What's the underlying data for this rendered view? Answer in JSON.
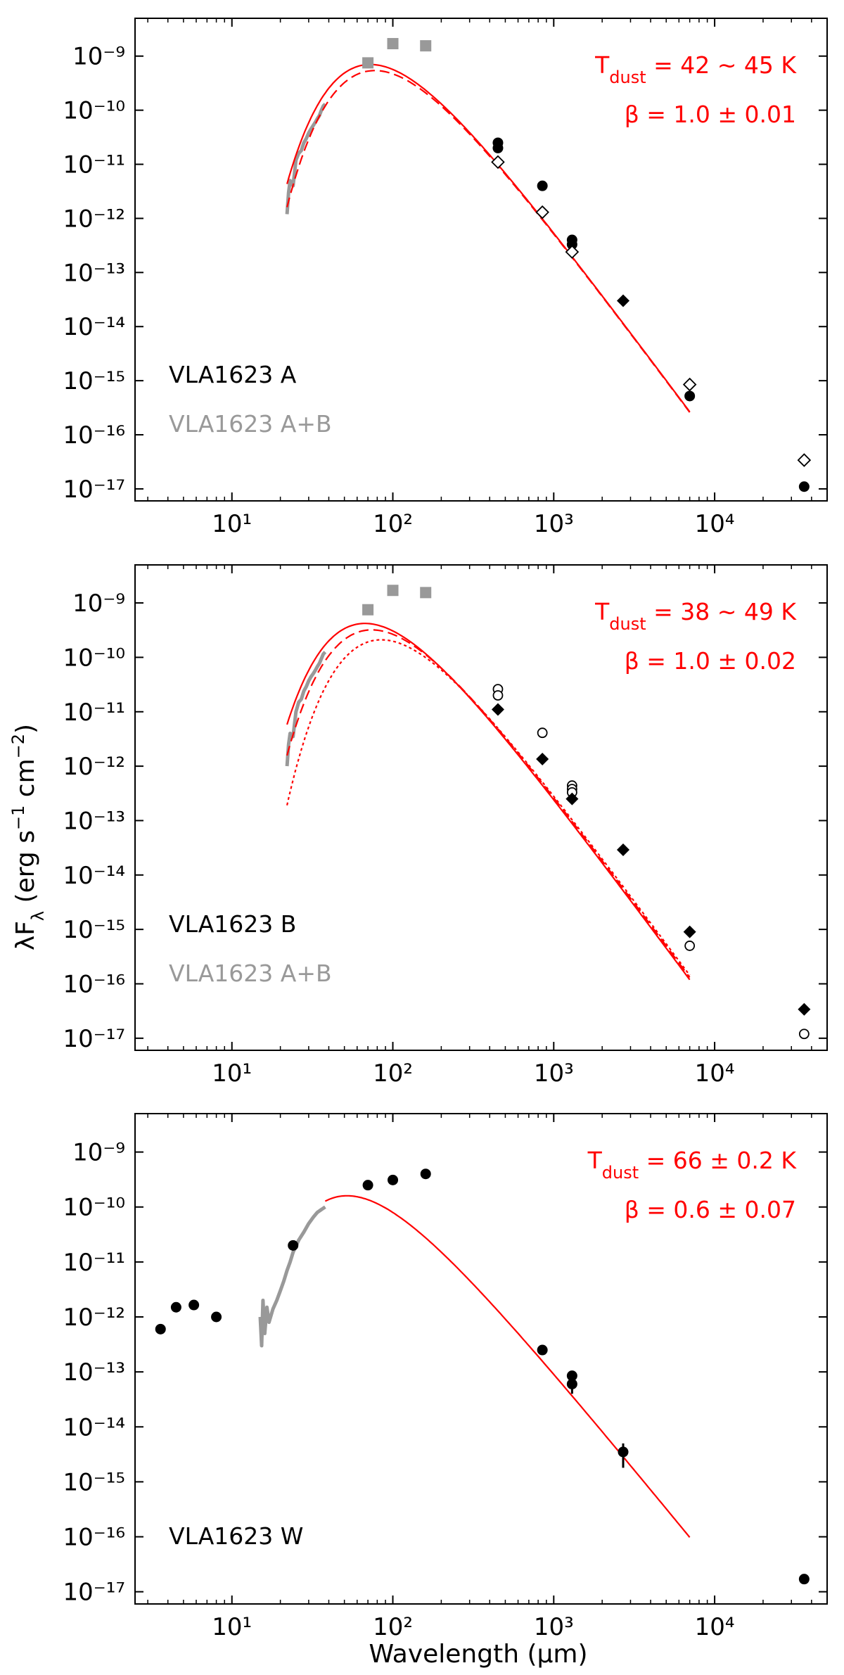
{
  "figure": {
    "xlabel": "Wavelength (μm)",
    "ylabel": "λF_λ (erg s⁻¹ cm⁻²)"
  },
  "colors": {
    "fit": "#ff0000",
    "gray": "#999999",
    "black": "#000000"
  },
  "chart_data": [
    {
      "type": "scatter",
      "xscale": "log",
      "yscale": "log",
      "xlim": [
        2.5,
        50000
      ],
      "ylim": [
        6e-18,
        5e-09
      ],
      "xticks": [
        {
          "v": 10,
          "label": "10¹"
        },
        {
          "v": 100,
          "label": "10²"
        },
        {
          "v": 1000,
          "label": "10³"
        },
        {
          "v": 10000,
          "label": "10⁴"
        }
      ],
      "yticks": [
        {
          "v": 1e-09,
          "label": "10⁻⁹"
        },
        {
          "v": 1e-10,
          "label": "10⁻¹⁰"
        },
        {
          "v": 1e-11,
          "label": "10⁻¹¹"
        },
        {
          "v": 1e-12,
          "label": "10⁻¹²"
        },
        {
          "v": 1e-13,
          "label": "10⁻¹³"
        },
        {
          "v": 1e-14,
          "label": "10⁻¹⁴"
        },
        {
          "v": 1e-15,
          "label": "10⁻¹⁵"
        },
        {
          "v": 1e-16,
          "label": "10⁻¹⁶"
        },
        {
          "v": 1e-17,
          "label": "10⁻¹⁷"
        }
      ],
      "annotations": {
        "tdust": "42 ∼ 45 K",
        "beta": "β = 1.0 ± 0.01"
      },
      "legend": {
        "source": "VLA1623 A",
        "combined": "VLA1623 A+B"
      },
      "gray_spectrum": [
        [
          22,
          1.2e-12
        ],
        [
          22.5,
          3e-12
        ],
        [
          23,
          5e-12
        ],
        [
          24,
          4e-12
        ],
        [
          25,
          1.2e-11
        ],
        [
          26,
          1.6e-11
        ],
        [
          27,
          1.8e-11
        ],
        [
          28,
          2.5e-11
        ],
        [
          29,
          3e-11
        ],
        [
          30,
          3.8e-11
        ],
        [
          31,
          4.5e-11
        ],
        [
          32,
          5.2e-11
        ],
        [
          33,
          6e-11
        ],
        [
          34,
          7e-11
        ],
        [
          35,
          8e-11
        ],
        [
          36,
          1e-10
        ],
        [
          37,
          1.2e-10
        ],
        [
          38,
          1.3e-10
        ]
      ],
      "series": [
        {
          "name": "far-IR (A+B)",
          "marker": "square",
          "color": "#999999",
          "x": [
            70,
            100,
            160
          ],
          "y": [
            7.5e-10,
            1.7e-09,
            1.55e-09
          ]
        },
        {
          "name": "filled circles",
          "marker": "circle-filled",
          "x": [
            450,
            450,
            850,
            1300,
            1300,
            7000,
            36000
          ],
          "y": [
            2.5e-11,
            2e-11,
            4e-12,
            4e-13,
            3.3e-13,
            5.2e-16,
            1.1e-17
          ]
        },
        {
          "name": "open diamonds",
          "marker": "diamond-open",
          "x": [
            450,
            850,
            1300,
            7000,
            36000
          ],
          "y": [
            1.1e-11,
            1.3e-12,
            2.4e-13,
            8.5e-16,
            3.4e-17
          ]
        },
        {
          "name": "filled diamonds",
          "marker": "diamond-filled",
          "x": [
            2700
          ],
          "y": [
            3e-14
          ]
        }
      ],
      "fits": [
        {
          "name": "fit-solid",
          "style": "solid",
          "T": 45,
          "beta": 1.0,
          "peak": 7e-10,
          "xmin": 22,
          "xmax": 7000
        },
        {
          "name": "fit-dashed",
          "style": "dashed",
          "T": 42,
          "beta": 1.0,
          "peak": 5.4e-10,
          "xmin": 22,
          "xmax": 7000
        }
      ]
    },
    {
      "type": "scatter",
      "xscale": "log",
      "yscale": "log",
      "xlim": [
        2.5,
        50000
      ],
      "ylim": [
        6e-18,
        5e-09
      ],
      "xticks": [
        {
          "v": 10,
          "label": "10¹"
        },
        {
          "v": 100,
          "label": "10²"
        },
        {
          "v": 1000,
          "label": "10³"
        },
        {
          "v": 10000,
          "label": "10⁴"
        }
      ],
      "yticks": [
        {
          "v": 1e-09,
          "label": "10⁻⁹"
        },
        {
          "v": 1e-10,
          "label": "10⁻¹⁰"
        },
        {
          "v": 1e-11,
          "label": "10⁻¹¹"
        },
        {
          "v": 1e-12,
          "label": "10⁻¹²"
        },
        {
          "v": 1e-13,
          "label": "10⁻¹³"
        },
        {
          "v": 1e-14,
          "label": "10⁻¹⁴"
        },
        {
          "v": 1e-15,
          "label": "10⁻¹⁵"
        },
        {
          "v": 1e-16,
          "label": "10⁻¹⁶"
        },
        {
          "v": 1e-17,
          "label": "10⁻¹⁷"
        }
      ],
      "annotations": {
        "tdust": "38 ∼ 49 K",
        "beta": "β = 1.0 ± 0.02"
      },
      "legend": {
        "source": "VLA1623 B",
        "combined": "VLA1623 A+B"
      },
      "gray_spectrum": [
        [
          22,
          1e-12
        ],
        [
          22.5,
          2.5e-12
        ],
        [
          23,
          4e-12
        ],
        [
          24,
          3.5e-12
        ],
        [
          25,
          1e-11
        ],
        [
          26,
          1.5e-11
        ],
        [
          27,
          1.7e-11
        ],
        [
          28,
          2.4e-11
        ],
        [
          29,
          2.9e-11
        ],
        [
          30,
          3.7e-11
        ],
        [
          31,
          4.4e-11
        ],
        [
          32,
          5e-11
        ],
        [
          33,
          5.8e-11
        ],
        [
          34,
          6.8e-11
        ],
        [
          35,
          7.8e-11
        ],
        [
          36,
          9.5e-11
        ],
        [
          37,
          1.15e-10
        ],
        [
          38,
          1.25e-10
        ]
      ],
      "series": [
        {
          "name": "far-IR (A+B)",
          "marker": "square",
          "color": "#999999",
          "x": [
            70,
            100,
            160
          ],
          "y": [
            7.5e-10,
            1.7e-09,
            1.55e-09
          ]
        },
        {
          "name": "open circles",
          "marker": "circle-open",
          "x": [
            450,
            450,
            850,
            1300,
            1300,
            1300,
            7000,
            36000
          ],
          "y": [
            2.6e-11,
            2e-11,
            4.1e-12,
            4.4e-13,
            3.8e-13,
            3.3e-13,
            5e-16,
            1.2e-17
          ]
        },
        {
          "name": "filled diamonds",
          "marker": "diamond-filled",
          "x": [
            450,
            850,
            1300,
            2700,
            7000,
            36000
          ],
          "y": [
            1.1e-11,
            1.35e-12,
            2.5e-13,
            2.9e-14,
            9e-16,
            3.4e-17
          ]
        }
      ],
      "fits": [
        {
          "name": "fit-solid",
          "style": "solid",
          "T": 49,
          "beta": 1.0,
          "peak": 4.2e-10,
          "xmin": 22,
          "xmax": 7000
        },
        {
          "name": "fit-dashed",
          "style": "dashed",
          "T": 44,
          "beta": 1.0,
          "peak": 3.2e-10,
          "xmin": 22,
          "xmax": 7000
        },
        {
          "name": "fit-dotted",
          "style": "dotted",
          "T": 38,
          "beta": 1.0,
          "peak": 2.1e-10,
          "xmin": 22,
          "xmax": 7000
        }
      ]
    },
    {
      "type": "scatter",
      "xscale": "log",
      "yscale": "log",
      "xlim": [
        2.5,
        50000
      ],
      "ylim": [
        6e-18,
        5e-09
      ],
      "xticks": [
        {
          "v": 10,
          "label": "10¹"
        },
        {
          "v": 100,
          "label": "10²"
        },
        {
          "v": 1000,
          "label": "10³"
        },
        {
          "v": 10000,
          "label": "10⁴"
        }
      ],
      "yticks": [
        {
          "v": 1e-09,
          "label": "10⁻⁹"
        },
        {
          "v": 1e-10,
          "label": "10⁻¹⁰"
        },
        {
          "v": 1e-11,
          "label": "10⁻¹¹"
        },
        {
          "v": 1e-12,
          "label": "10⁻¹²"
        },
        {
          "v": 1e-13,
          "label": "10⁻¹³"
        },
        {
          "v": 1e-14,
          "label": "10⁻¹⁴"
        },
        {
          "v": 1e-15,
          "label": "10⁻¹⁵"
        },
        {
          "v": 1e-16,
          "label": "10⁻¹⁶"
        },
        {
          "v": 1e-17,
          "label": "10⁻¹⁷"
        }
      ],
      "annotations": {
        "tdust": "66 ± 0.2 K",
        "beta": "β = 0.6 ± 0.07"
      },
      "legend": {
        "source": "VLA1623 W",
        "combined": ""
      },
      "gray_spectrum": [
        [
          15,
          1e-12
        ],
        [
          15.3,
          3e-13
        ],
        [
          15.6,
          2e-12
        ],
        [
          16,
          5e-13
        ],
        [
          16.5,
          1.5e-12
        ],
        [
          17,
          8e-13
        ],
        [
          18,
          1.4e-12
        ],
        [
          19,
          2e-12
        ],
        [
          20,
          3e-12
        ],
        [
          21,
          4.5e-12
        ],
        [
          22,
          7e-12
        ],
        [
          23,
          1e-11
        ],
        [
          24,
          1.5e-11
        ],
        [
          26,
          2.5e-11
        ],
        [
          28,
          3.5e-11
        ],
        [
          30,
          5e-11
        ],
        [
          32,
          6.5e-11
        ],
        [
          34,
          8e-11
        ],
        [
          36,
          9e-11
        ],
        [
          38,
          1e-10
        ]
      ],
      "series": [
        {
          "name": "filled circles",
          "marker": "circle-filled",
          "x": [
            3.6,
            4.5,
            5.8,
            8,
            24,
            70,
            100,
            160,
            850,
            1300,
            1300,
            2700,
            36000
          ],
          "y": [
            6e-13,
            1.5e-12,
            1.65e-12,
            1e-12,
            2e-11,
            2.5e-10,
            3.1e-10,
            4e-10,
            2.5e-13,
            8.5e-14,
            6e-14,
            3.5e-15,
            1.7e-17
          ]
        }
      ],
      "errorbars": [
        {
          "x": 1300,
          "ylo": 4e-14,
          "yhi": 8.5e-14
        },
        {
          "x": 2700,
          "ylo": 1.8e-15,
          "yhi": 5e-15
        }
      ],
      "fits": [
        {
          "name": "fit-solid",
          "style": "solid",
          "T": 66,
          "beta": 0.6,
          "peak": 1.6e-10,
          "xmin": 38,
          "xmax": 7000
        }
      ]
    }
  ]
}
